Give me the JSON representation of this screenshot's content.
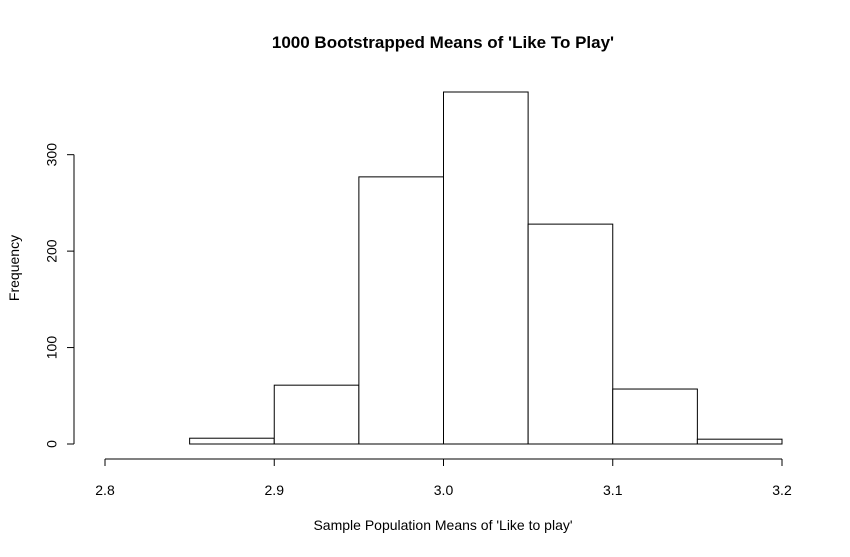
{
  "chart_data": {
    "type": "bar",
    "title": "1000 Bootstrapped Means of 'Like To Play'",
    "xlabel": "Sample Population Means of 'Like to play'",
    "ylabel": "Frequency",
    "bins": [
      {
        "from": 2.8,
        "to": 2.85,
        "count": 0
      },
      {
        "from": 2.85,
        "to": 2.9,
        "count": 6
      },
      {
        "from": 2.9,
        "to": 2.95,
        "count": 61
      },
      {
        "from": 2.95,
        "to": 3.0,
        "count": 277
      },
      {
        "from": 3.0,
        "to": 3.05,
        "count": 365
      },
      {
        "from": 3.05,
        "to": 3.1,
        "count": 228
      },
      {
        "from": 3.1,
        "to": 3.15,
        "count": 57
      },
      {
        "from": 3.15,
        "to": 3.2,
        "count": 5
      }
    ],
    "xlim": [
      2.8,
      3.2
    ],
    "ylim": [
      0,
      365
    ],
    "x_ticks": [
      "2.8",
      "2.9",
      "3.0",
      "3.1",
      "3.2"
    ],
    "y_ticks": [
      "0",
      "100",
      "200",
      "300"
    ],
    "grid": false,
    "bar_fill": "#ffffff",
    "bar_stroke": "#000000"
  }
}
